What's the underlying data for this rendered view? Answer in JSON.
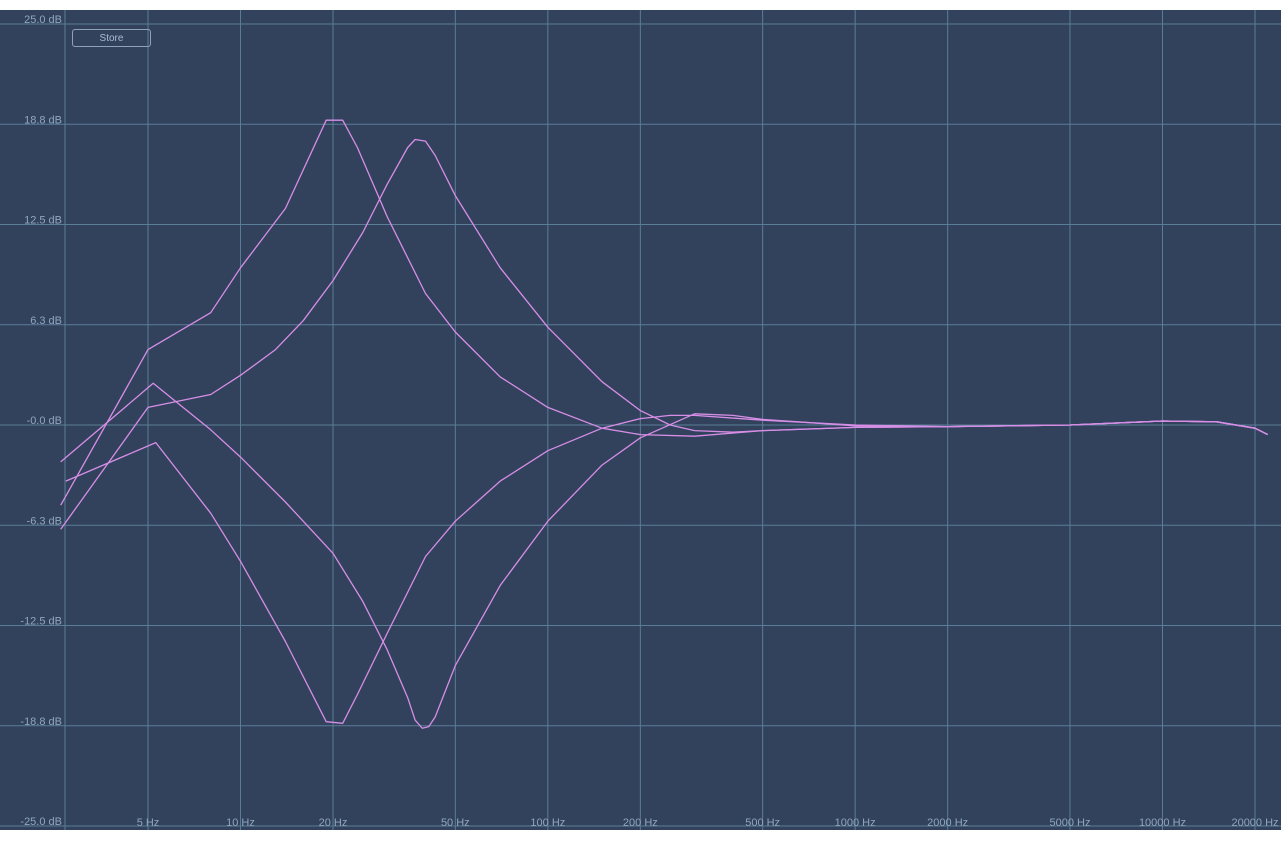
{
  "toolbar": {
    "store_label": "Store"
  },
  "colors": {
    "background": "#32425d",
    "grid": "#5a7d98",
    "curve": "#d78ee6",
    "label": "#8fa7bd"
  },
  "chart_data": {
    "type": "line",
    "title": "",
    "xlabel": "",
    "ylabel": "",
    "x_scale": "log",
    "xlim": [
      2.6,
      22000
    ],
    "ylim": [
      -25,
      25
    ],
    "grid": true,
    "legend": "none",
    "x_ticks": [
      {
        "value": 5,
        "label": "5 Hz"
      },
      {
        "value": 10,
        "label": "10 Hz"
      },
      {
        "value": 20,
        "label": "20 Hz"
      },
      {
        "value": 50,
        "label": "50 Hz"
      },
      {
        "value": 100,
        "label": "100 Hz"
      },
      {
        "value": 200,
        "label": "200 Hz"
      },
      {
        "value": 500,
        "label": "500 Hz"
      },
      {
        "value": 1000,
        "label": "1000 Hz"
      },
      {
        "value": 2000,
        "label": "2000 Hz"
      },
      {
        "value": 5000,
        "label": "5000 Hz"
      },
      {
        "value": 10000,
        "label": "10000 Hz"
      },
      {
        "value": 20000,
        "label": "20000 Hz"
      }
    ],
    "y_ticks": [
      {
        "value": 25,
        "label": "25.0 dB"
      },
      {
        "value": 18.75,
        "label": "18.8 dB"
      },
      {
        "value": 12.5,
        "label": "12.5 dB"
      },
      {
        "value": 6.25,
        "label": "6.3 dB"
      },
      {
        "value": 0,
        "label": "-0.0 dB"
      },
      {
        "value": -6.25,
        "label": "-6.3 dB"
      },
      {
        "value": -12.5,
        "label": "-12.5 dB"
      },
      {
        "value": -18.75,
        "label": "-18.8 dB"
      },
      {
        "value": -25,
        "label": "-25.0 dB"
      }
    ],
    "series": [
      {
        "points": [
          [
            2.6,
            -5
          ],
          [
            5,
            4.7
          ],
          [
            8,
            7
          ],
          [
            10,
            9.8
          ],
          [
            14,
            13.5
          ],
          [
            19,
            19
          ],
          [
            21.5,
            19
          ],
          [
            24,
            17.3
          ],
          [
            30,
            13
          ],
          [
            40,
            8.2
          ],
          [
            50,
            5.8
          ],
          [
            70,
            3
          ],
          [
            100,
            1.1
          ],
          [
            150,
            -0.2
          ],
          [
            200,
            -0.6
          ],
          [
            300,
            -0.7
          ],
          [
            500,
            -0.35
          ],
          [
            1000,
            -0.15
          ],
          [
            2000,
            -0.1
          ],
          [
            5000,
            0
          ],
          [
            10000,
            0.25
          ],
          [
            15000,
            0.2
          ],
          [
            20000,
            -0.2
          ],
          [
            22000,
            -0.6
          ]
        ]
      },
      {
        "points": [
          [
            2.6,
            -6.5
          ],
          [
            5,
            1.1
          ],
          [
            8,
            1.9
          ],
          [
            10,
            3.1
          ],
          [
            13,
            4.7
          ],
          [
            16,
            6.5
          ],
          [
            20,
            9
          ],
          [
            25,
            12
          ],
          [
            30,
            15
          ],
          [
            35,
            17.3
          ],
          [
            37,
            17.8
          ],
          [
            40,
            17.7
          ],
          [
            43,
            16.8
          ],
          [
            50,
            14.3
          ],
          [
            70,
            9.8
          ],
          [
            100,
            6.1
          ],
          [
            150,
            2.7
          ],
          [
            200,
            0.9
          ],
          [
            250,
            0
          ],
          [
            300,
            -0.35
          ],
          [
            400,
            -0.45
          ],
          [
            500,
            -0.35
          ],
          [
            1000,
            -0.15
          ],
          [
            2000,
            -0.1
          ],
          [
            5000,
            0
          ],
          [
            10000,
            0.25
          ],
          [
            15000,
            0.2
          ],
          [
            20000,
            -0.2
          ],
          [
            22000,
            -0.6
          ]
        ]
      },
      {
        "points": [
          [
            2.6,
            -2.3
          ],
          [
            5.2,
            2.6
          ],
          [
            8,
            -0.3
          ],
          [
            10,
            -2
          ],
          [
            14,
            -4.8
          ],
          [
            20,
            -8
          ],
          [
            25,
            -11
          ],
          [
            30,
            -14
          ],
          [
            35,
            -17
          ],
          [
            37,
            -18.4
          ],
          [
            39,
            -18.9
          ],
          [
            41,
            -18.8
          ],
          [
            43,
            -18.2
          ],
          [
            50,
            -15
          ],
          [
            70,
            -10
          ],
          [
            100,
            -6
          ],
          [
            150,
            -2.5
          ],
          [
            200,
            -0.8
          ],
          [
            300,
            0.7
          ],
          [
            400,
            0.6
          ],
          [
            500,
            0.35
          ],
          [
            1000,
            -0.05
          ],
          [
            2000,
            -0.1
          ],
          [
            5000,
            0
          ],
          [
            10000,
            0.25
          ],
          [
            15000,
            0.2
          ],
          [
            20000,
            -0.2
          ],
          [
            22000,
            -0.6
          ]
        ]
      },
      {
        "points": [
          [
            2.7,
            -3.5
          ],
          [
            5.3,
            -1.1
          ],
          [
            8,
            -5.5
          ],
          [
            10,
            -8.5
          ],
          [
            14,
            -13.5
          ],
          [
            19,
            -18.5
          ],
          [
            21.5,
            -18.6
          ],
          [
            24,
            -16.8
          ],
          [
            30,
            -13
          ],
          [
            40,
            -8.2
          ],
          [
            50,
            -6
          ],
          [
            70,
            -3.5
          ],
          [
            100,
            -1.6
          ],
          [
            150,
            -0.2
          ],
          [
            200,
            0.4
          ],
          [
            250,
            0.6
          ],
          [
            300,
            0.6
          ],
          [
            500,
            0.3
          ],
          [
            1000,
            0
          ],
          [
            2000,
            -0.1
          ],
          [
            5000,
            0
          ],
          [
            10000,
            0.25
          ],
          [
            15000,
            0.2
          ],
          [
            20000,
            -0.2
          ],
          [
            22000,
            -0.6
          ]
        ]
      }
    ]
  }
}
